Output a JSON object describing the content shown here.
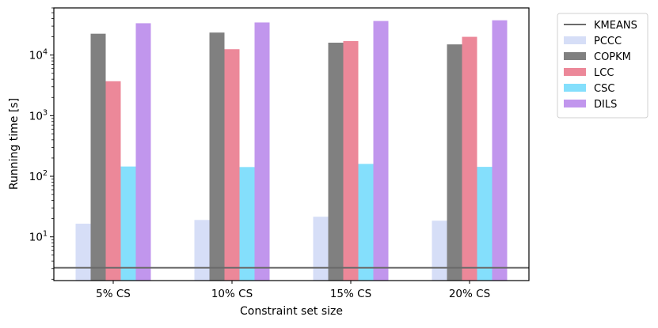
{
  "chart_data": {
    "type": "bar",
    "xlabel": "Constraint set size",
    "ylabel": "Running time [s]",
    "yscale": "log",
    "ylim": [
      1.9,
      60000
    ],
    "categories": [
      "5% CS",
      "10% CS",
      "15% CS",
      "20% CS"
    ],
    "yticks": [
      {
        "value": 10,
        "base": "10",
        "exp": "1"
      },
      {
        "value": 100,
        "base": "10",
        "exp": "2"
      },
      {
        "value": 1000,
        "base": "10",
        "exp": "3"
      },
      {
        "value": 10000,
        "base": "10",
        "exp": "4"
      }
    ],
    "baseline": {
      "name": "KMEANS",
      "value": 3.1,
      "color": "#6b6b6b"
    },
    "series": [
      {
        "name": "PCCC",
        "color": "#d6def7",
        "values": [
          16.5,
          19,
          21.5,
          18.5
        ]
      },
      {
        "name": "COPKM",
        "color": "#808080",
        "values": [
          22500,
          23500,
          16000,
          15000
        ]
      },
      {
        "name": "LCC",
        "color": "#ec8899",
        "values": [
          3700,
          12500,
          17000,
          20000
        ]
      },
      {
        "name": "CSC",
        "color": "#84dffc",
        "values": [
          145,
          142,
          160,
          143
        ]
      },
      {
        "name": "DILS",
        "color": "#c196ed",
        "values": [
          33500,
          34500,
          36500,
          37500
        ]
      }
    ],
    "legend_position": "outside-right-top",
    "grid": false
  }
}
